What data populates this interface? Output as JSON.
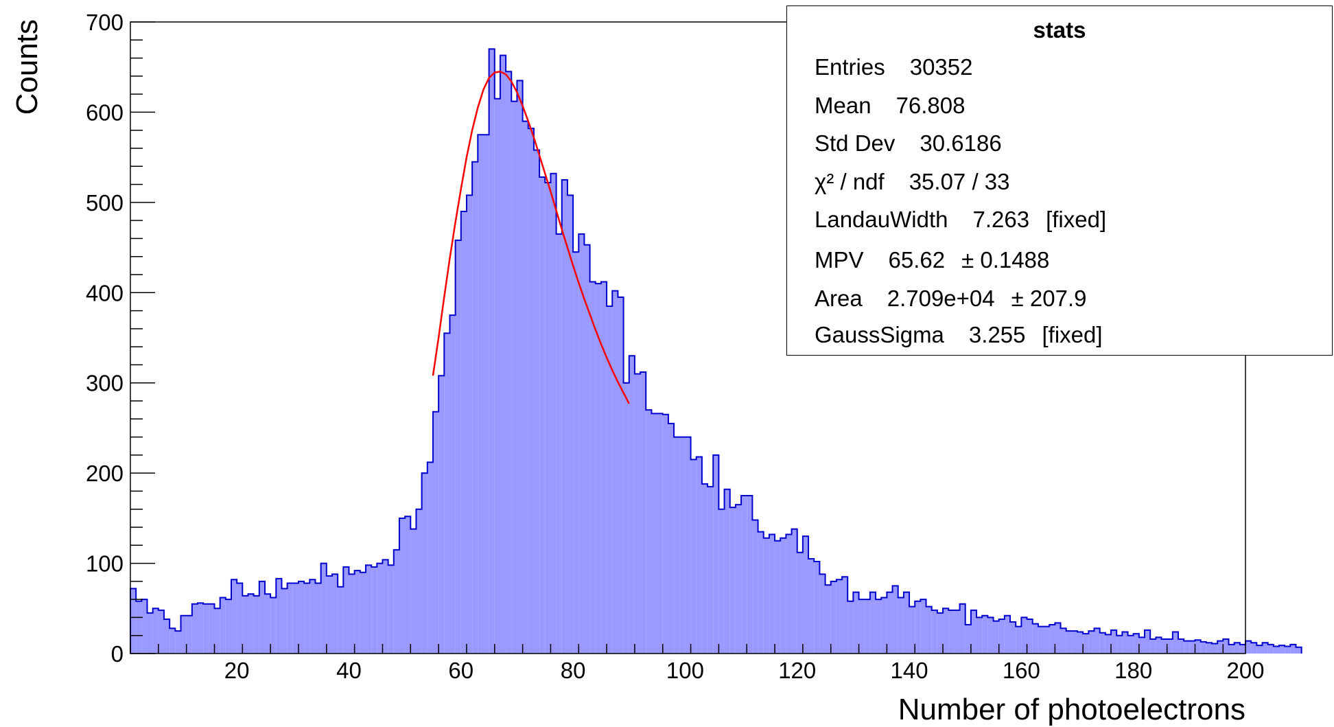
{
  "chart_data": {
    "type": "bar",
    "xlabel": "Number of photoelectrons",
    "ylabel": "Counts",
    "xlim": [
      1,
      200
    ],
    "ylim": [
      0,
      700
    ],
    "xticks": [
      20,
      40,
      60,
      80,
      100,
      120,
      140,
      160,
      180,
      200
    ],
    "yticks": [
      0,
      100,
      200,
      300,
      400,
      500,
      600,
      700
    ],
    "bin_width": 1,
    "x_start": 1,
    "series": [
      {
        "style": "histogram",
        "fill": "#9999ff",
        "line": "#0000cc",
        "values": [
          72,
          58,
          60,
          45,
          50,
          48,
          38,
          28,
          25,
          42,
          42,
          55,
          56,
          55,
          55,
          50,
          62,
          60,
          82,
          78,
          64,
          66,
          64,
          80,
          66,
          62,
          83,
          72,
          78,
          78,
          80,
          78,
          82,
          78,
          100,
          86,
          88,
          74,
          96,
          88,
          92,
          90,
          98,
          96,
          100,
          104,
          98,
          115,
          150,
          152,
          138,
          160,
          200,
          212,
          268,
          308,
          355,
          375,
          458,
          490,
          508,
          545,
          575,
          575,
          670,
          615,
          663,
          645,
          612,
          635,
          590,
          582,
          558,
          528,
          522,
          532,
          465,
          525,
          508,
          445,
          465,
          453,
          412,
          410,
          412,
          385,
          402,
          395,
          300,
          330,
          310,
          312,
          270,
          266,
          266,
          265,
          255,
          240,
          240,
          240,
          215,
          218,
          188,
          185,
          220,
          160,
          182,
          162,
          165,
          175,
          175,
          148,
          135,
          128,
          132,
          125,
          128,
          132,
          138,
          112,
          130,
          105,
          102,
          88,
          76,
          80,
          82,
          85,
          58,
          68,
          60,
          60,
          68,
          60,
          62,
          68,
          75,
          62,
          68,
          52,
          58,
          60,
          52,
          48,
          45,
          50,
          48,
          48,
          55,
          32,
          48,
          40,
          42,
          40,
          36,
          38,
          42,
          35,
          30,
          40,
          38,
          33,
          30,
          30,
          32,
          34,
          28,
          25,
          25,
          24,
          22,
          25,
          28,
          23,
          21,
          26,
          20,
          24,
          20,
          22,
          18,
          26,
          16,
          18,
          16,
          16,
          24,
          16,
          14,
          14,
          15,
          13,
          12,
          11,
          14,
          16,
          10,
          12,
          10,
          14,
          12,
          9,
          12,
          10,
          8,
          9,
          8,
          10,
          7
        ]
      },
      {
        "style": "fit",
        "line": "#ff0000",
        "x": [
          55,
          56,
          57,
          58,
          59,
          60,
          61,
          62,
          63,
          64,
          65,
          66,
          67,
          68,
          69,
          70,
          71,
          72,
          73,
          74,
          75,
          76,
          77,
          78,
          79,
          80,
          81,
          82,
          83,
          84,
          85,
          86,
          87,
          88,
          89,
          90
        ],
        "values": [
          308,
          350,
          395,
          438,
          478,
          515,
          550,
          580,
          605,
          625,
          638,
          644,
          645,
          642,
          634,
          622,
          607,
          590,
          572,
          552,
          532,
          512,
          491,
          470,
          450,
          430,
          411,
          393,
          376,
          359,
          343,
          328,
          314,
          301,
          289,
          277
        ]
      }
    ],
    "stats": {
      "title": "stats",
      "rows": [
        {
          "label": "Entries",
          "value": "30352",
          "extra": ""
        },
        {
          "label": "Mean",
          "value": "76.808",
          "extra": ""
        },
        {
          "label": "Std Dev",
          "value": "30.6186",
          "extra": ""
        },
        {
          "label": "χ² / ndf",
          "value": "35.07 / 33",
          "extra": ""
        },
        {
          "label": "LandauWidth",
          "value": "7.263",
          "extra": "[fixed]"
        },
        {
          "label": "MPV",
          "value": "65.62",
          "extra": "± 0.1488"
        },
        {
          "label": "Area",
          "value": "2.709e+04",
          "extra": "± 207.9"
        },
        {
          "label": "GaussSigma",
          "value": "3.255",
          "extra": "[fixed]"
        }
      ]
    }
  }
}
